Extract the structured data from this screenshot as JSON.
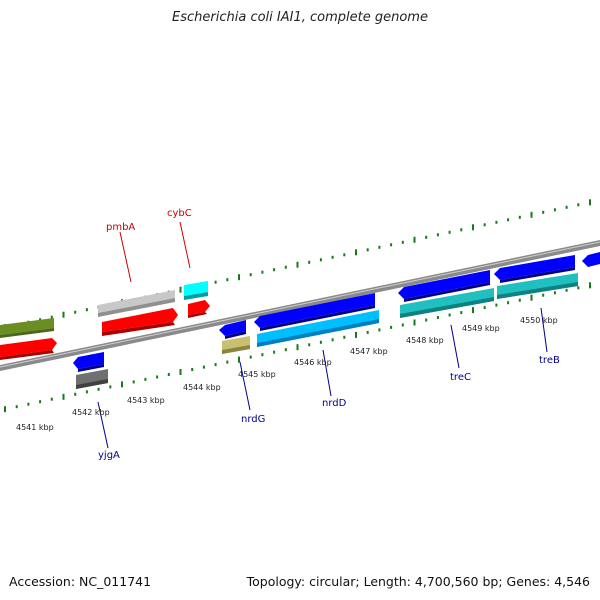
{
  "title": "Escherichia coli IAI1, complete genome",
  "accession": "Accession: NC_011741",
  "summary": "Topology: circular; Length: 4,700,560 bp; Genes: 4,546",
  "scale": {
    "ticks": [
      {
        "label": "4541 kbp"
      },
      {
        "label": "4542 kbp"
      },
      {
        "label": "4543 kbp"
      },
      {
        "label": "4544 kbp"
      },
      {
        "label": "4545 kbp"
      },
      {
        "label": "4546 kbp"
      },
      {
        "label": "4547 kbp"
      },
      {
        "label": "4548 kbp"
      },
      {
        "label": "4549 kbp"
      },
      {
        "label": "4550 kbp"
      }
    ]
  },
  "genes": [
    {
      "name": "",
      "color": "#6b8e23"
    },
    {
      "name": "",
      "color": "#ff0000"
    },
    {
      "name": "pmbA",
      "color": "#c0c0c0",
      "label_color": "#cc0000"
    },
    {
      "name": "",
      "color": "#ff0000"
    },
    {
      "name": "cybC",
      "color": "#00ffff",
      "label_color": "#cc0000"
    },
    {
      "name": "",
      "color": "#ff0000"
    },
    {
      "name": "yjgA",
      "color": "#0000ff",
      "label_color": "#00008b"
    },
    {
      "name": "",
      "color": "#606060"
    },
    {
      "name": "",
      "color": "#0000ff"
    },
    {
      "name": "",
      "color": "#c8c070"
    },
    {
      "name": "nrdG",
      "color": "#0000ff",
      "label_color": "#00008b"
    },
    {
      "name": "nrdD",
      "color": "#00bfff",
      "label_color": "#00008b"
    },
    {
      "name": "",
      "color": "#0000ff"
    },
    {
      "name": "treC",
      "color": "#20c0c0",
      "label_color": "#00008b"
    },
    {
      "name": "",
      "color": "#0000ff"
    },
    {
      "name": "treB",
      "color": "#20c0c0",
      "label_color": "#00008b"
    },
    {
      "name": "",
      "color": "#0000ff"
    }
  ]
}
